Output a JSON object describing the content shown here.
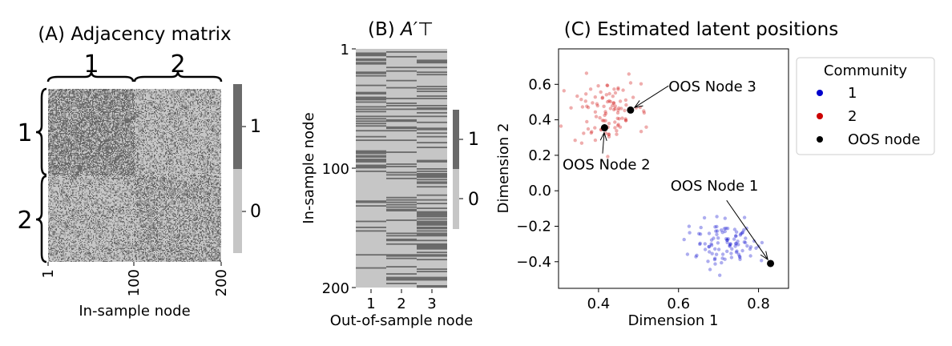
{
  "colors": {
    "dark": "#6a6a6a",
    "light": "#c6c6c6",
    "community_1": "#0000cc",
    "community_2": "#cc0000",
    "oos": "#000000"
  },
  "chart_data": [
    {
      "type": "heatmap",
      "title": "(A) Adjacency matrix",
      "xlabel": "In-sample node",
      "ylabel": "",
      "xticks": [
        "1",
        "100",
        "200"
      ],
      "brace_labels": [
        "1",
        "2"
      ],
      "colorbar_ticks": [
        "0",
        "1"
      ],
      "n_nodes": 200,
      "block_sizes": [
        100,
        100
      ],
      "edge_probabilities": [
        [
          0.6,
          0.3
        ],
        [
          0.3,
          0.4
        ]
      ]
    },
    {
      "type": "heatmap",
      "title_prefix": "(B) ",
      "title_math": "A′⊤",
      "xlabel": "Out-of-sample node",
      "ylabel": "In-sample node",
      "xticks": [
        "1",
        "2",
        "3"
      ],
      "yticks": [
        "1",
        "100",
        "200"
      ],
      "colorbar_ticks": [
        "0",
        "1"
      ],
      "n_rows": 200,
      "n_cols": 3
    },
    {
      "type": "scatter",
      "title": "(C) Estimated latent positions",
      "xlabel": "Dimension 1",
      "ylabel": "Dimension 2",
      "xlim": [
        0.3,
        0.875
      ],
      "ylim": [
        -0.55,
        0.8
      ],
      "xticks": [
        "0.4",
        "0.6",
        "0.8"
      ],
      "yticks": [
        "−0.4",
        "−0.2",
        "0.0",
        "0.2",
        "0.4",
        "0.6"
      ],
      "legend": {
        "title": "Community",
        "entries": [
          "1",
          "2",
          "OOS node"
        ],
        "placement": "outside-right"
      },
      "clusters": [
        {
          "name": "1",
          "center": [
            0.72,
            -0.3
          ],
          "spread": [
            0.05,
            0.06
          ],
          "n": 100
        },
        {
          "name": "2",
          "center": [
            0.42,
            0.45
          ],
          "spread": [
            0.045,
            0.09
          ],
          "n": 100
        }
      ],
      "oos_points": [
        {
          "label": "OOS Node 1",
          "x": 0.83,
          "y": -0.41,
          "text_x": 0.58,
          "text_y": 0.0
        },
        {
          "label": "OOS Node 2",
          "x": 0.415,
          "y": 0.355,
          "text_x": 0.31,
          "text_y": 0.12
        },
        {
          "label": "OOS Node 3",
          "x": 0.48,
          "y": 0.455,
          "text_x": 0.575,
          "text_y": 0.56
        }
      ]
    }
  ]
}
